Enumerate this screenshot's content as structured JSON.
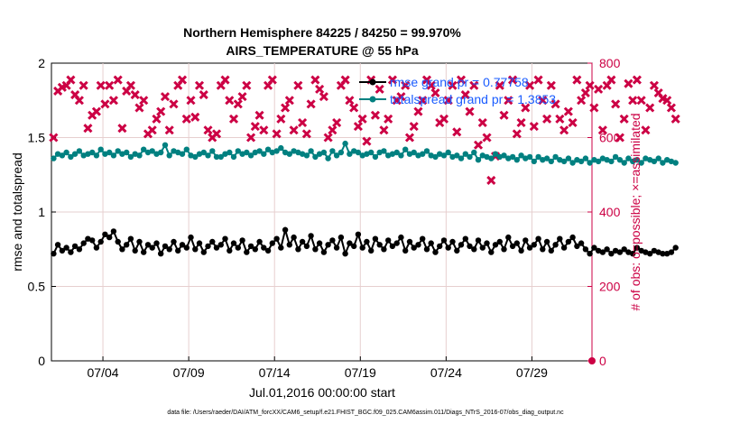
{
  "chart_data": {
    "type": "line",
    "title": [
      "Northern Hemisphere 84225 / 84250 = 99.970%",
      "AIRS_TEMPERATURE @ 55 hPa"
    ],
    "xlabel": "Jul.01,2016 00:00:00 start",
    "ylabel_left": "rmse and totalspread",
    "ylabel_right": "# of obs: o=possible; ×=assimilated",
    "xlim": [
      0,
      31.5
    ],
    "ylim_left": [
      0,
      2
    ],
    "ylim_right": [
      0,
      800
    ],
    "x_ticks": [
      {
        "value": 3,
        "label": "07/04"
      },
      {
        "value": 8,
        "label": "07/09"
      },
      {
        "value": 13,
        "label": "07/14"
      },
      {
        "value": 18,
        "label": "07/19"
      },
      {
        "value": 23,
        "label": "07/24"
      },
      {
        "value": 28,
        "label": "07/29"
      }
    ],
    "y_ticks_left": [
      "0",
      "0.5",
      "1",
      "1.5",
      "2"
    ],
    "y_ticks_right": [
      "0",
      "200",
      "400",
      "600",
      "800"
    ],
    "grid": true,
    "legend_position": "top-right",
    "x_step_days": 0.25,
    "series": [
      {
        "name": "rmse grand pr = 0.77758",
        "axis": "left",
        "color": "#000000",
        "marker": "circle",
        "values": [
          0.72,
          0.78,
          0.74,
          0.76,
          0.73,
          0.77,
          0.75,
          0.79,
          0.82,
          0.81,
          0.76,
          0.8,
          0.85,
          0.83,
          0.87,
          0.8,
          0.75,
          0.78,
          0.82,
          0.74,
          0.8,
          0.73,
          0.78,
          0.76,
          0.79,
          0.72,
          0.77,
          0.75,
          0.8,
          0.74,
          0.78,
          0.76,
          0.83,
          0.75,
          0.79,
          0.73,
          0.77,
          0.8,
          0.76,
          0.78,
          0.82,
          0.74,
          0.79,
          0.76,
          0.81,
          0.73,
          0.77,
          0.75,
          0.8,
          0.76,
          0.74,
          0.79,
          0.82,
          0.76,
          0.88,
          0.78,
          0.83,
          0.75,
          0.8,
          0.77,
          0.84,
          0.75,
          0.79,
          0.73,
          0.78,
          0.81,
          0.76,
          0.83,
          0.72,
          0.79,
          0.77,
          0.85,
          0.76,
          0.8,
          0.74,
          0.82,
          0.78,
          0.75,
          0.81,
          0.77,
          0.79,
          0.83,
          0.74,
          0.8,
          0.76,
          0.78,
          0.82,
          0.75,
          0.79,
          0.73,
          0.77,
          0.81,
          0.76,
          0.8,
          0.74,
          0.78,
          0.82,
          0.77,
          0.75,
          0.81,
          0.76,
          0.79,
          0.73,
          0.78,
          0.8,
          0.75,
          0.83,
          0.77,
          0.79,
          0.74,
          0.81,
          0.76,
          0.78,
          0.82,
          0.75,
          0.8,
          0.74,
          0.78,
          0.82,
          0.76,
          0.8,
          0.83,
          0.77,
          0.79,
          0.75,
          0.72,
          0.76,
          0.74,
          0.73,
          0.75,
          0.72,
          0.74,
          0.73,
          0.75,
          0.73,
          0.72,
          0.76,
          0.74,
          0.73,
          0.72,
          0.74,
          0.73,
          0.72,
          0.72,
          0.73,
          0.76
        ]
      },
      {
        "name": "totalspread grand pr = 1.3853",
        "axis": "left",
        "color": "#008080",
        "marker": "circle",
        "values": [
          1.36,
          1.39,
          1.38,
          1.4,
          1.37,
          1.39,
          1.41,
          1.38,
          1.39,
          1.4,
          1.38,
          1.42,
          1.39,
          1.4,
          1.38,
          1.41,
          1.39,
          1.4,
          1.37,
          1.39,
          1.38,
          1.42,
          1.4,
          1.41,
          1.39,
          1.4,
          1.45,
          1.38,
          1.41,
          1.4,
          1.39,
          1.42,
          1.38,
          1.37,
          1.39,
          1.4,
          1.38,
          1.41,
          1.37,
          1.37,
          1.39,
          1.4,
          1.37,
          1.41,
          1.39,
          1.4,
          1.38,
          1.4,
          1.41,
          1.39,
          1.42,
          1.4,
          1.41,
          1.43,
          1.4,
          1.39,
          1.41,
          1.4,
          1.39,
          1.38,
          1.41,
          1.37,
          1.39,
          1.4,
          1.36,
          1.41,
          1.38,
          1.4,
          1.46,
          1.39,
          1.41,
          1.4,
          1.38,
          1.39,
          1.4,
          1.37,
          1.4,
          1.41,
          1.38,
          1.39,
          1.4,
          1.38,
          1.42,
          1.39,
          1.4,
          1.38,
          1.39,
          1.41,
          1.38,
          1.37,
          1.39,
          1.38,
          1.4,
          1.37,
          1.38,
          1.36,
          1.39,
          1.37,
          1.4,
          1.35,
          1.38,
          1.37,
          1.36,
          1.39,
          1.37,
          1.38,
          1.36,
          1.37,
          1.35,
          1.38,
          1.36,
          1.37,
          1.34,
          1.37,
          1.35,
          1.36,
          1.34,
          1.37,
          1.35,
          1.34,
          1.36,
          1.33,
          1.35,
          1.34,
          1.36,
          1.33,
          1.35,
          1.34,
          1.36,
          1.35,
          1.34,
          1.37,
          1.35,
          1.33,
          1.36,
          1.34,
          1.35,
          1.33,
          1.36,
          1.35,
          1.34,
          1.36,
          1.33,
          1.35,
          1.34,
          1.33
        ]
      }
    ],
    "obs_series": [
      {
        "name": "# of obs assimilated",
        "axis": "right",
        "color": "#cc0044",
        "marker": "x",
        "values": [
          600,
          725,
          735,
          740,
          755,
          715,
          700,
          740,
          625,
          660,
          670,
          740,
          690,
          740,
          700,
          755,
          625,
          725,
          740,
          715,
          680,
          700,
          610,
          620,
          650,
          670,
          710,
          620,
          690,
          740,
          755,
          650,
          700,
          655,
          740,
          715,
          620,
          600,
          610,
          740,
          755,
          700,
          650,
          690,
          710,
          740,
          600,
          630,
          660,
          620,
          740,
          755,
          610,
          650,
          680,
          700,
          620,
          740,
          640,
          610,
          690,
          755,
          730,
          710,
          600,
          620,
          640,
          740,
          755,
          700,
          680,
          630,
          650,
          590,
          755,
          660,
          730,
          620,
          650,
          755,
          700,
          710,
          740,
          600,
          630,
          670,
          700,
          755,
          740,
          720,
          640,
          650,
          700,
          740,
          615,
          755,
          715,
          670,
          740,
          580,
          640,
          600,
          485,
          550,
          740,
          660,
          700,
          755,
          610,
          640,
          680,
          740,
          630,
          755,
          700,
          650,
          740,
          690,
          650,
          620,
          670,
          640,
          755,
          700,
          720,
          740,
          680,
          730,
          620,
          740,
          755,
          690,
          600,
          650,
          745,
          700,
          755,
          700,
          620,
          680,
          740,
          720,
          705,
          700,
          680,
          650
        ]
      }
    ],
    "legend": [
      "rmse grand pr = 0.77758",
      "totalspread grand pr = 1.3853"
    ],
    "footnote": "data file: /Users/raeder/DAI/ATM_forcXX/CAM6_setup/f.e21.FHIST_BGC.f09_025.CAM6assim.011/Diags_NTrS_2016-07/obs_diag_output.nc"
  }
}
